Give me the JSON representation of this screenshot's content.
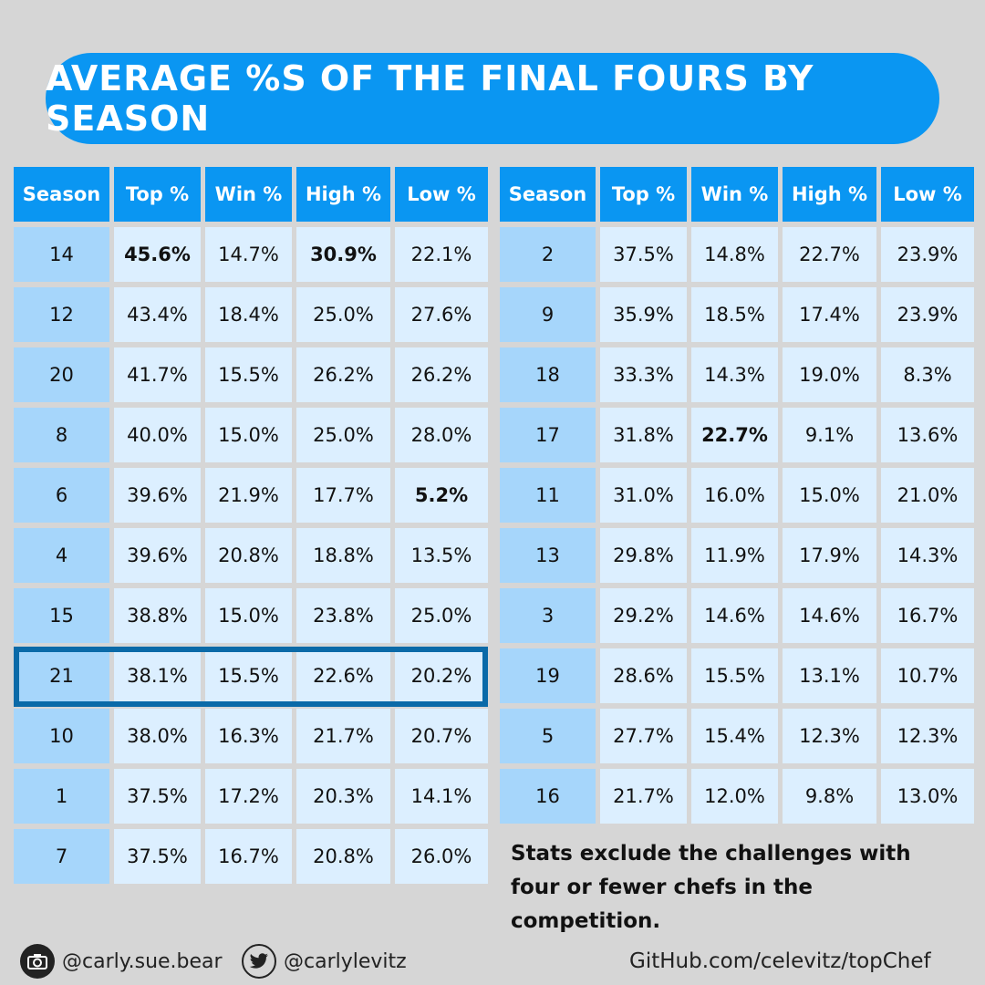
{
  "title": "AVERAGE %S OF THE FINAL FOURS BY SEASON",
  "headers": [
    "Season",
    "Top %",
    "Win %",
    "High %",
    "Low %"
  ],
  "left_rows": [
    {
      "season": "14",
      "top": "45.6%",
      "win": "14.7%",
      "high": "30.9%",
      "low": "22.1%"
    },
    {
      "season": "12",
      "top": "43.4%",
      "win": "18.4%",
      "high": "25.0%",
      "low": "27.6%"
    },
    {
      "season": "20",
      "top": "41.7%",
      "win": "15.5%",
      "high": "26.2%",
      "low": "26.2%"
    },
    {
      "season": "8",
      "top": "40.0%",
      "win": "15.0%",
      "high": "25.0%",
      "low": "28.0%"
    },
    {
      "season": "6",
      "top": "39.6%",
      "win": "21.9%",
      "high": "17.7%",
      "low": "5.2%"
    },
    {
      "season": "4",
      "top": "39.6%",
      "win": "20.8%",
      "high": "18.8%",
      "low": "13.5%"
    },
    {
      "season": "15",
      "top": "38.8%",
      "win": "15.0%",
      "high": "23.8%",
      "low": "25.0%"
    },
    {
      "season": "21",
      "top": "38.1%",
      "win": "15.5%",
      "high": "22.6%",
      "low": "20.2%"
    },
    {
      "season": "10",
      "top": "38.0%",
      "win": "16.3%",
      "high": "21.7%",
      "low": "20.7%"
    },
    {
      "season": "1",
      "top": "37.5%",
      "win": "17.2%",
      "high": "20.3%",
      "low": "14.1%"
    },
    {
      "season": "7",
      "top": "37.5%",
      "win": "16.7%",
      "high": "20.8%",
      "low": "26.0%"
    }
  ],
  "right_rows": [
    {
      "season": "2",
      "top": "37.5%",
      "win": "14.8%",
      "high": "22.7%",
      "low": "23.9%"
    },
    {
      "season": "9",
      "top": "35.9%",
      "win": "18.5%",
      "high": "17.4%",
      "low": "23.9%"
    },
    {
      "season": "18",
      "top": "33.3%",
      "win": "14.3%",
      "high": "19.0%",
      "low": "8.3%"
    },
    {
      "season": "17",
      "top": "31.8%",
      "win": "22.7%",
      "high": "9.1%",
      "low": "13.6%"
    },
    {
      "season": "11",
      "top": "31.0%",
      "win": "16.0%",
      "high": "15.0%",
      "low": "21.0%"
    },
    {
      "season": "13",
      "top": "29.8%",
      "win": "11.9%",
      "high": "17.9%",
      "low": "14.3%"
    },
    {
      "season": "3",
      "top": "29.2%",
      "win": "14.6%",
      "high": "14.6%",
      "low": "16.7%"
    },
    {
      "season": "19",
      "top": "28.6%",
      "win": "15.5%",
      "high": "13.1%",
      "low": "10.7%"
    },
    {
      "season": "5",
      "top": "27.7%",
      "win": "15.4%",
      "high": "12.3%",
      "low": "12.3%"
    },
    {
      "season": "16",
      "top": "21.7%",
      "win": "12.0%",
      "high": "9.8%",
      "low": "13.0%"
    }
  ],
  "bold_cells": [
    {
      "side": "left",
      "season": "14",
      "field": "top"
    },
    {
      "side": "left",
      "season": "14",
      "field": "high"
    },
    {
      "side": "left",
      "season": "6",
      "field": "low"
    },
    {
      "side": "right",
      "season": "17",
      "field": "win"
    }
  ],
  "highlighted_season": "21",
  "note": "Stats exclude the challenges with four or fewer chefs in the competition.",
  "footer": {
    "instagram_icon": "camera-icon",
    "instagram": "@carly.sue.bear",
    "twitter_icon": "bird-icon",
    "twitter": "@carlylevitz",
    "github": "GitHub.com/celevitz/topChef"
  },
  "colors": {
    "background": "#d6d6d6",
    "accent": "#0a96f2",
    "season_cell": "#a6d6fb",
    "value_cell": "#dcefff",
    "highlight_border": "#0a6aa8"
  }
}
